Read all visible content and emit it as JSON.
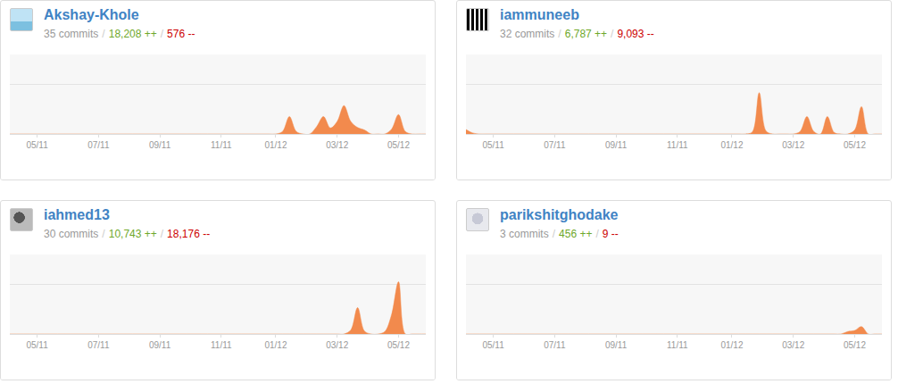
{
  "chart_data": [
    {
      "type": "area",
      "title": "Akshay-Khole",
      "subtitle": [
        "35 commits",
        "/",
        "18,208 ++",
        "/",
        "576 --"
      ],
      "x": [
        0,
        1,
        2,
        3,
        4,
        5,
        6,
        7,
        8,
        9,
        10,
        11,
        12,
        13,
        14,
        15,
        16,
        17,
        18,
        19,
        20,
        21,
        22,
        23,
        24,
        25,
        26,
        27,
        28,
        29,
        30,
        31,
        32,
        33,
        34,
        35,
        36,
        37,
        38,
        39,
        40,
        41,
        42,
        43,
        44,
        45,
        46,
        47,
        48,
        49,
        50,
        51,
        52,
        53,
        54,
        55,
        56,
        57,
        58,
        59,
        60,
        61
      ],
      "values": [
        0,
        0,
        0,
        0,
        0,
        0,
        0,
        0,
        0,
        0,
        0,
        0,
        0,
        0,
        0,
        0,
        0,
        0,
        0,
        0,
        0,
        0,
        0,
        0,
        0,
        0,
        0,
        0,
        0,
        0,
        0,
        0,
        0,
        0,
        0,
        0,
        0,
        0,
        0,
        0,
        0.5,
        3.5,
        0.5,
        0,
        0,
        1.5,
        3.5,
        1.2,
        2.5,
        5.7,
        2.5,
        1.3,
        0.8,
        0,
        0,
        0,
        1,
        3.9,
        0.5,
        0,
        0,
        0
      ],
      "color": "#f28a4d",
      "xlim": [
        0,
        61
      ],
      "xticks": [
        {
          "value": 4,
          "label": "05/11"
        },
        {
          "value": 13,
          "label": "07/11"
        },
        {
          "value": 22,
          "label": "09/11"
        },
        {
          "value": 31,
          "label": "11/11"
        },
        {
          "value": 39,
          "label": "01/12"
        },
        {
          "value": 48,
          "label": "03/12"
        },
        {
          "value": 57,
          "label": "05/12"
        }
      ],
      "ylim": [
        0,
        16
      ],
      "yticks": [
        0,
        10
      ],
      "grid": true,
      "tick_labels": "x"
    },
    {
      "type": "area",
      "title": "iammuneeb",
      "subtitle": [
        "32 commits",
        "/",
        "6,787 ++",
        "/",
        "9,093 --"
      ],
      "x": [
        0,
        1,
        2,
        3,
        4,
        5,
        6,
        7,
        8,
        9,
        10,
        11,
        12,
        13,
        14,
        15,
        16,
        17,
        18,
        19,
        20,
        21,
        22,
        23,
        24,
        25,
        26,
        27,
        28,
        29,
        30,
        31,
        32,
        33,
        34,
        35,
        36,
        37,
        38,
        39,
        40,
        41,
        42,
        43,
        44,
        45,
        46,
        47,
        48,
        49,
        50,
        51,
        52,
        53,
        54,
        55,
        56,
        57,
        58,
        59,
        60,
        61
      ],
      "values": [
        0.9,
        0.2,
        0,
        0,
        0,
        0,
        0,
        0,
        0,
        0,
        0,
        0,
        0,
        0,
        0,
        0,
        0,
        0,
        0,
        0,
        0,
        0,
        0,
        0,
        0,
        0,
        0,
        0,
        0,
        0,
        0,
        0,
        0,
        0,
        0,
        0,
        0,
        0,
        0,
        0,
        0,
        0,
        0.4,
        8.3,
        0.6,
        0,
        0,
        0,
        0,
        0.5,
        3.5,
        0.5,
        0,
        3.5,
        0.3,
        0,
        0,
        0.8,
        5.5,
        0,
        0,
        0
      ],
      "color": "#f28a4d",
      "xlim": [
        0,
        61
      ],
      "xticks": [
        {
          "value": 4,
          "label": "05/11"
        },
        {
          "value": 13,
          "label": "07/11"
        },
        {
          "value": 22,
          "label": "09/11"
        },
        {
          "value": 31,
          "label": "11/11"
        },
        {
          "value": 39,
          "label": "01/12"
        },
        {
          "value": 48,
          "label": "03/12"
        },
        {
          "value": 57,
          "label": "05/12"
        }
      ],
      "ylim": [
        0,
        16
      ],
      "yticks": [
        0,
        10
      ],
      "grid": true,
      "tick_labels": "x"
    },
    {
      "type": "area",
      "title": "iahmed13",
      "subtitle": [
        "30 commits",
        "/",
        "10,743 ++",
        "/",
        "18,176 --"
      ],
      "x": [
        0,
        1,
        2,
        3,
        4,
        5,
        6,
        7,
        8,
        9,
        10,
        11,
        12,
        13,
        14,
        15,
        16,
        17,
        18,
        19,
        20,
        21,
        22,
        23,
        24,
        25,
        26,
        27,
        28,
        29,
        30,
        31,
        32,
        33,
        34,
        35,
        36,
        37,
        38,
        39,
        40,
        41,
        42,
        43,
        44,
        45,
        46,
        47,
        48,
        49,
        50,
        51,
        52,
        53,
        54,
        55,
        56,
        57,
        58,
        59,
        60,
        61
      ],
      "values": [
        0,
        0,
        0,
        0,
        0,
        0,
        0,
        0,
        0,
        0,
        0,
        0,
        0,
        0,
        0,
        0,
        0,
        0,
        0,
        0,
        0,
        0,
        0,
        0,
        0,
        0,
        0,
        0,
        0,
        0,
        0,
        0,
        0,
        0,
        0,
        0,
        0,
        0,
        0,
        0,
        0,
        0,
        0,
        0,
        0,
        0,
        0,
        0,
        0,
        0,
        0.8,
        5.3,
        0.6,
        0,
        0,
        0.5,
        4,
        10.5,
        0,
        0,
        0,
        0
      ],
      "color": "#f28a4d",
      "xlim": [
        0,
        61
      ],
      "xticks": [
        {
          "value": 4,
          "label": "05/11"
        },
        {
          "value": 13,
          "label": "07/11"
        },
        {
          "value": 22,
          "label": "09/11"
        },
        {
          "value": 31,
          "label": "11/11"
        },
        {
          "value": 39,
          "label": "01/12"
        },
        {
          "value": 48,
          "label": "03/12"
        },
        {
          "value": 57,
          "label": "05/12"
        }
      ],
      "ylim": [
        0,
        16
      ],
      "yticks": [
        0,
        10
      ],
      "grid": true,
      "tick_labels": "x"
    },
    {
      "type": "area",
      "title": "parikshitghodake",
      "subtitle": [
        "3 commits",
        "/",
        "456 ++",
        "/",
        "9 --"
      ],
      "x": [
        0,
        1,
        2,
        3,
        4,
        5,
        6,
        7,
        8,
        9,
        10,
        11,
        12,
        13,
        14,
        15,
        16,
        17,
        18,
        19,
        20,
        21,
        22,
        23,
        24,
        25,
        26,
        27,
        28,
        29,
        30,
        31,
        32,
        33,
        34,
        35,
        36,
        37,
        38,
        39,
        40,
        41,
        42,
        43,
        44,
        45,
        46,
        47,
        48,
        49,
        50,
        51,
        52,
        53,
        54,
        55,
        56,
        57,
        58,
        59,
        60,
        61
      ],
      "values": [
        0,
        0,
        0,
        0,
        0,
        0,
        0,
        0,
        0,
        0,
        0,
        0,
        0,
        0,
        0,
        0,
        0,
        0,
        0,
        0,
        0,
        0,
        0,
        0,
        0,
        0,
        0,
        0,
        0,
        0,
        0,
        0,
        0,
        0,
        0,
        0,
        0,
        0,
        0,
        0,
        0,
        0,
        0,
        0,
        0,
        0,
        0,
        0,
        0,
        0,
        0,
        0,
        0,
        0,
        0,
        0,
        0.5,
        0.7,
        1.5,
        0,
        0,
        0
      ],
      "color": "#f28a4d",
      "xlim": [
        0,
        61
      ],
      "xticks": [
        {
          "value": 4,
          "label": "05/11"
        },
        {
          "value": 13,
          "label": "07/11"
        },
        {
          "value": 22,
          "label": "09/11"
        },
        {
          "value": 31,
          "label": "11/11"
        },
        {
          "value": 39,
          "label": "01/12"
        },
        {
          "value": 48,
          "label": "03/12"
        },
        {
          "value": 57,
          "label": "05/12"
        }
      ],
      "ylim": [
        0,
        16
      ],
      "yticks": [
        0,
        10
      ],
      "grid": true,
      "tick_labels": "x"
    }
  ]
}
